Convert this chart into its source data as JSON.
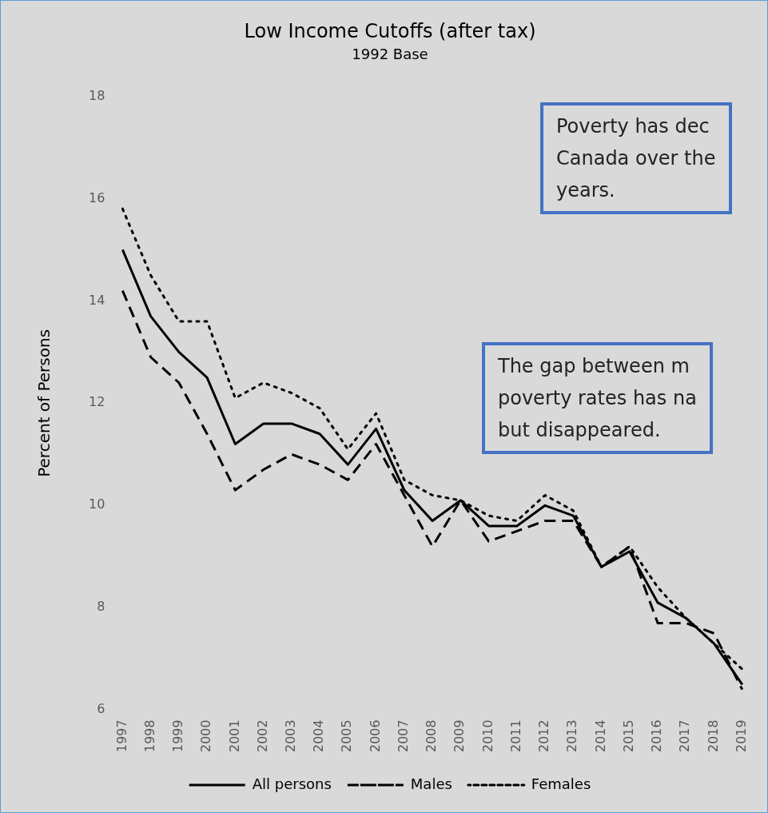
{
  "chart_data": {
    "type": "line",
    "title": "Low Income Cutoffs (after tax)",
    "subtitle": "1992 Base",
    "ylabel": "Percent of Persons",
    "categories": [
      "1997",
      "1998",
      "1999",
      "2000",
      "2001",
      "2002",
      "2003",
      "2004",
      "2005",
      "2006",
      "2007",
      "2008",
      "2009",
      "2010",
      "2011",
      "2012",
      "2013",
      "2014",
      "2015",
      "2016",
      "2017",
      "2018",
      "2019"
    ],
    "series": [
      {
        "name": "All persons",
        "color": "#000000",
        "line_style": "solid",
        "values": [
          15.0,
          13.7,
          13.0,
          12.5,
          11.2,
          11.6,
          11.6,
          11.4,
          10.8,
          11.5,
          10.3,
          9.7,
          10.1,
          9.6,
          9.6,
          10.0,
          9.8,
          8.8,
          9.1,
          8.1,
          7.8,
          7.3,
          6.5
        ]
      },
      {
        "name": "Males",
        "color": "#000000",
        "line_style": "dashed",
        "values": [
          14.2,
          12.9,
          12.4,
          11.4,
          10.3,
          10.7,
          11.0,
          10.8,
          10.5,
          11.2,
          10.2,
          9.2,
          10.1,
          9.3,
          9.5,
          9.7,
          9.7,
          8.8,
          9.2,
          7.7,
          7.7,
          7.5,
          6.4
        ]
      },
      {
        "name": "Females",
        "color": "#000000",
        "line_style": "dotted",
        "values": [
          15.8,
          14.5,
          13.6,
          13.6,
          12.1,
          12.4,
          12.2,
          11.9,
          11.1,
          11.8,
          10.5,
          10.2,
          10.1,
          9.8,
          9.7,
          10.2,
          9.9,
          8.8,
          9.2,
          8.4,
          7.8,
          7.3,
          6.8
        ]
      }
    ],
    "ylim": [
      6,
      18
    ],
    "yticks": [
      6,
      8,
      10,
      12,
      14,
      16,
      18
    ],
    "grid": false,
    "legend": "bottom",
    "marker": "none",
    "annotations": [
      "Poverty has dec\nCanada over the\nyears.",
      "The gap between m\npoverty rates has na\nbut disappeared."
    ]
  }
}
